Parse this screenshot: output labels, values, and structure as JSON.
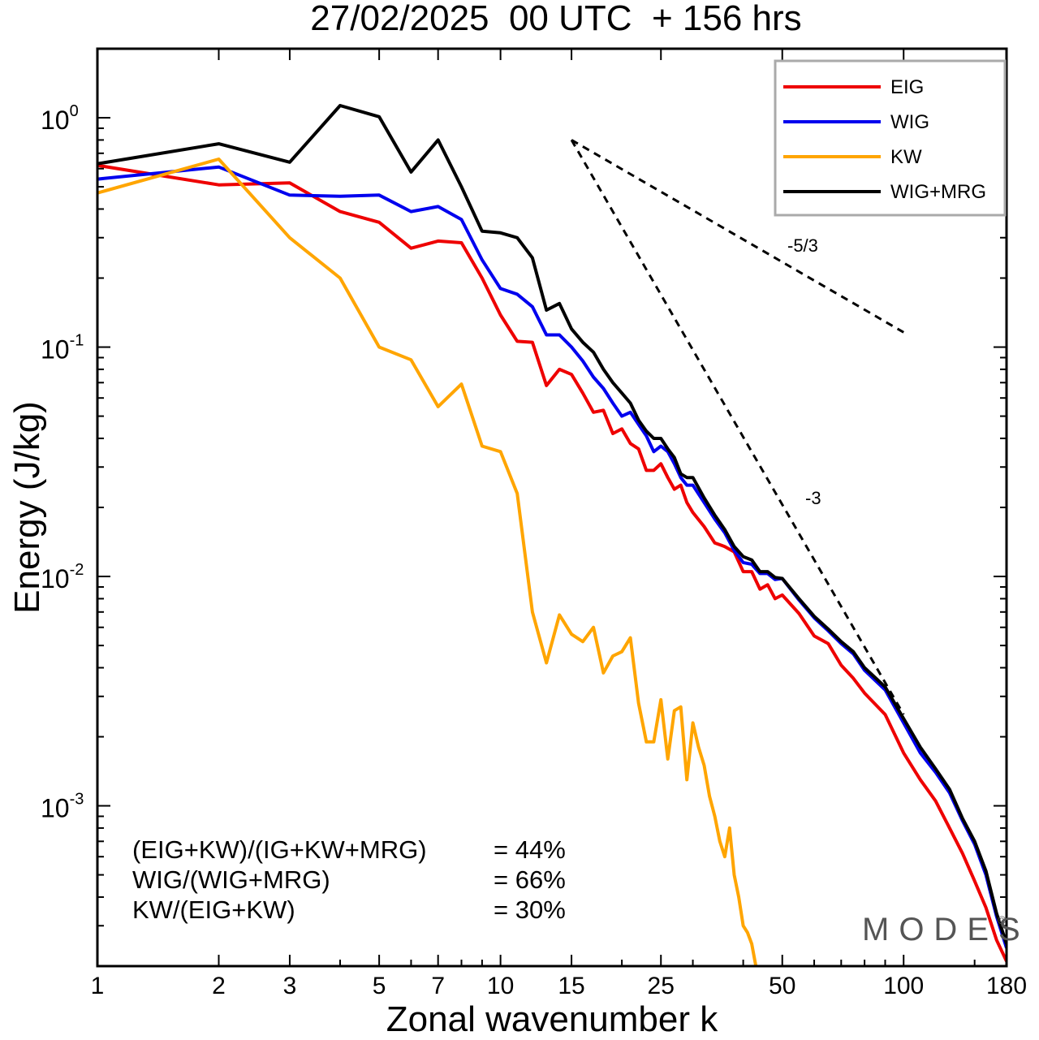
{
  "chart_data": {
    "type": "line",
    "title": "27/02/2025  00 UTC  + 156 hrs",
    "xlabel": "Zonal wavenumber k",
    "ylabel": "Energy (J/kg)",
    "x_scale": "log",
    "y_scale": "log",
    "xlim": [
      1,
      180
    ],
    "ylim": [
      0.0002,
      2.0
    ],
    "xticks": [
      1,
      2,
      3,
      5,
      7,
      10,
      15,
      25,
      50,
      100,
      180
    ],
    "xtick_labels": [
      "1",
      "2",
      "3",
      "5",
      "7",
      "10",
      "15",
      "25",
      "50",
      "100",
      "180"
    ],
    "yticks": [
      {
        "value": 0.001,
        "base": "10",
        "exp": "-3"
      },
      {
        "value": 0.01,
        "base": "10",
        "exp": "-2"
      },
      {
        "value": 0.1,
        "base": "10",
        "exp": "-1"
      },
      {
        "value": 1,
        "base": "10",
        "exp": "0"
      }
    ],
    "grid": false,
    "legend_position": "top-right",
    "series": [
      {
        "name": "EIG",
        "color": "#ee0000",
        "points": [
          [
            1,
            0.62
          ],
          [
            2,
            0.51
          ],
          [
            3,
            0.52
          ],
          [
            4,
            0.39
          ],
          [
            5,
            0.35
          ],
          [
            6,
            0.27
          ],
          [
            7,
            0.29
          ],
          [
            8,
            0.285
          ],
          [
            9,
            0.2
          ],
          [
            10,
            0.138
          ],
          [
            11,
            0.106
          ],
          [
            12,
            0.105
          ],
          [
            13,
            0.068
          ],
          [
            14,
            0.08
          ],
          [
            15,
            0.076
          ],
          [
            16,
            0.063
          ],
          [
            17,
            0.052
          ],
          [
            18,
            0.053
          ],
          [
            19,
            0.042
          ],
          [
            20,
            0.044
          ],
          [
            21,
            0.038
          ],
          [
            22,
            0.036
          ],
          [
            23,
            0.029
          ],
          [
            24,
            0.029
          ],
          [
            25,
            0.031
          ],
          [
            26,
            0.027
          ],
          [
            27,
            0.024
          ],
          [
            28,
            0.025
          ],
          [
            29,
            0.021
          ],
          [
            30,
            0.019
          ],
          [
            32,
            0.0165
          ],
          [
            34,
            0.014
          ],
          [
            36,
            0.0135
          ],
          [
            38,
            0.0128
          ],
          [
            40,
            0.0105
          ],
          [
            42,
            0.0105
          ],
          [
            44,
            0.0088
          ],
          [
            46,
            0.0092
          ],
          [
            48,
            0.008
          ],
          [
            50,
            0.0083
          ],
          [
            55,
            0.0069
          ],
          [
            60,
            0.0055
          ],
          [
            65,
            0.0051
          ],
          [
            70,
            0.0041
          ],
          [
            75,
            0.0036
          ],
          [
            80,
            0.0031
          ],
          [
            90,
            0.0025
          ],
          [
            100,
            0.0017
          ],
          [
            110,
            0.0013
          ],
          [
            120,
            0.00105
          ],
          [
            130,
            0.0008
          ],
          [
            140,
            0.00062
          ],
          [
            150,
            0.00047
          ],
          [
            160,
            0.00036
          ],
          [
            170,
            0.00026
          ],
          [
            180,
            0.00021
          ]
        ]
      },
      {
        "name": "WIG",
        "color": "#0000ee",
        "points": [
          [
            1,
            0.54
          ],
          [
            2,
            0.61
          ],
          [
            3,
            0.46
          ],
          [
            4,
            0.455
          ],
          [
            5,
            0.46
          ],
          [
            6,
            0.39
          ],
          [
            7,
            0.41
          ],
          [
            8,
            0.36
          ],
          [
            9,
            0.24
          ],
          [
            10,
            0.18
          ],
          [
            11,
            0.17
          ],
          [
            12,
            0.15
          ],
          [
            13,
            0.113
          ],
          [
            14,
            0.113
          ],
          [
            15,
            0.1
          ],
          [
            16,
            0.087
          ],
          [
            17,
            0.074
          ],
          [
            18,
            0.066
          ],
          [
            19,
            0.057
          ],
          [
            20,
            0.05
          ],
          [
            21,
            0.052
          ],
          [
            22,
            0.046
          ],
          [
            23,
            0.041
          ],
          [
            24,
            0.035
          ],
          [
            25,
            0.037
          ],
          [
            26,
            0.035
          ],
          [
            27,
            0.031
          ],
          [
            28,
            0.027
          ],
          [
            29,
            0.025
          ],
          [
            30,
            0.025
          ],
          [
            32,
            0.021
          ],
          [
            34,
            0.0178
          ],
          [
            36,
            0.0155
          ],
          [
            38,
            0.013
          ],
          [
            40,
            0.0115
          ],
          [
            42,
            0.0113
          ],
          [
            44,
            0.0103
          ],
          [
            46,
            0.0103
          ],
          [
            48,
            0.0097
          ],
          [
            50,
            0.0098
          ],
          [
            55,
            0.0079
          ],
          [
            60,
            0.0066
          ],
          [
            65,
            0.0058
          ],
          [
            70,
            0.0051
          ],
          [
            75,
            0.0046
          ],
          [
            80,
            0.0039
          ],
          [
            90,
            0.0032
          ],
          [
            100,
            0.0023
          ],
          [
            110,
            0.0017
          ],
          [
            120,
            0.0014
          ],
          [
            130,
            0.00114
          ],
          [
            140,
            0.00086
          ],
          [
            150,
            0.00068
          ],
          [
            160,
            0.0005
          ],
          [
            170,
            0.00033
          ],
          [
            180,
            0.00024
          ]
        ]
      },
      {
        "name": "KW",
        "color": "#ffa500",
        "points": [
          [
            1,
            0.47
          ],
          [
            2,
            0.66
          ],
          [
            3,
            0.3
          ],
          [
            4,
            0.2
          ],
          [
            5,
            0.1
          ],
          [
            6,
            0.088
          ],
          [
            7,
            0.055
          ],
          [
            8,
            0.069
          ],
          [
            9,
            0.037
          ],
          [
            10,
            0.035
          ],
          [
            11,
            0.023
          ],
          [
            12,
            0.007
          ],
          [
            13,
            0.0042
          ],
          [
            14,
            0.0068
          ],
          [
            15,
            0.0056
          ],
          [
            16,
            0.0052
          ],
          [
            17,
            0.006
          ],
          [
            18,
            0.0038
          ],
          [
            19,
            0.0045
          ],
          [
            20,
            0.0047
          ],
          [
            21,
            0.0054
          ],
          [
            22,
            0.0028
          ],
          [
            23,
            0.0019
          ],
          [
            24,
            0.0019
          ],
          [
            25,
            0.0029
          ],
          [
            26,
            0.0016
          ],
          [
            27,
            0.0026
          ],
          [
            28,
            0.0027
          ],
          [
            29,
            0.0013
          ],
          [
            30,
            0.0023
          ],
          [
            31,
            0.0018
          ],
          [
            32,
            0.0015
          ],
          [
            33,
            0.0011
          ],
          [
            34,
            0.0009
          ],
          [
            35,
            0.0007
          ],
          [
            36,
            0.0006
          ],
          [
            37,
            0.0008
          ],
          [
            38,
            0.0005
          ],
          [
            39,
            0.0004
          ],
          [
            40,
            0.0003
          ],
          [
            41,
            0.00028
          ],
          [
            42,
            0.00025
          ],
          [
            43,
            0.0002
          ]
        ]
      },
      {
        "name": "WIG+MRG",
        "color": "#000000",
        "points": [
          [
            1,
            0.63
          ],
          [
            2,
            0.77
          ],
          [
            3,
            0.64
          ],
          [
            4,
            1.13
          ],
          [
            5,
            1.01
          ],
          [
            6,
            0.58
          ],
          [
            7,
            0.8
          ],
          [
            8,
            0.5
          ],
          [
            9,
            0.32
          ],
          [
            10,
            0.315
          ],
          [
            11,
            0.3
          ],
          [
            12,
            0.245
          ],
          [
            13,
            0.145
          ],
          [
            14,
            0.155
          ],
          [
            15,
            0.12
          ],
          [
            16,
            0.105
          ],
          [
            17,
            0.095
          ],
          [
            18,
            0.08
          ],
          [
            19,
            0.07
          ],
          [
            20,
            0.063
          ],
          [
            21,
            0.057
          ],
          [
            22,
            0.048
          ],
          [
            23,
            0.043
          ],
          [
            24,
            0.04
          ],
          [
            25,
            0.04
          ],
          [
            26,
            0.036
          ],
          [
            27,
            0.033
          ],
          [
            28,
            0.028
          ],
          [
            29,
            0.027
          ],
          [
            30,
            0.027
          ],
          [
            32,
            0.022
          ],
          [
            34,
            0.0185
          ],
          [
            36,
            0.016
          ],
          [
            38,
            0.0135
          ],
          [
            40,
            0.0122
          ],
          [
            42,
            0.0118
          ],
          [
            44,
            0.0105
          ],
          [
            46,
            0.0105
          ],
          [
            48,
            0.0099
          ],
          [
            50,
            0.0098
          ],
          [
            55,
            0.008
          ],
          [
            60,
            0.0067
          ],
          [
            65,
            0.0059
          ],
          [
            70,
            0.0052
          ],
          [
            75,
            0.0047
          ],
          [
            80,
            0.004
          ],
          [
            90,
            0.0033
          ],
          [
            100,
            0.0024
          ],
          [
            110,
            0.0018
          ],
          [
            120,
            0.00145
          ],
          [
            130,
            0.00118
          ],
          [
            140,
            0.00088
          ],
          [
            150,
            0.0007
          ],
          [
            160,
            0.00052
          ],
          [
            170,
            0.00034
          ],
          [
            180,
            0.00025
          ]
        ]
      }
    ],
    "reference_lines": [
      {
        "label": "-5/3",
        "color": "#000000",
        "dash": true,
        "from": [
          15,
          0.8
        ],
        "to": [
          100,
          0.116
        ]
      },
      {
        "label": "-3",
        "color": "#000000",
        "dash": true,
        "from": [
          15,
          0.8
        ],
        "to": [
          100,
          0.0025
        ]
      }
    ],
    "annotations": [
      {
        "left": "(EIG+KW)/(IG+KW+MRG)",
        "right": "= 44%"
      },
      {
        "left": "WIG/(WIG+MRG)",
        "right": "= 66%"
      },
      {
        "left": "KW/(EIG+KW)",
        "right": "= 30%"
      }
    ],
    "watermark": {
      "text": "MODES",
      "mark": "©"
    }
  }
}
